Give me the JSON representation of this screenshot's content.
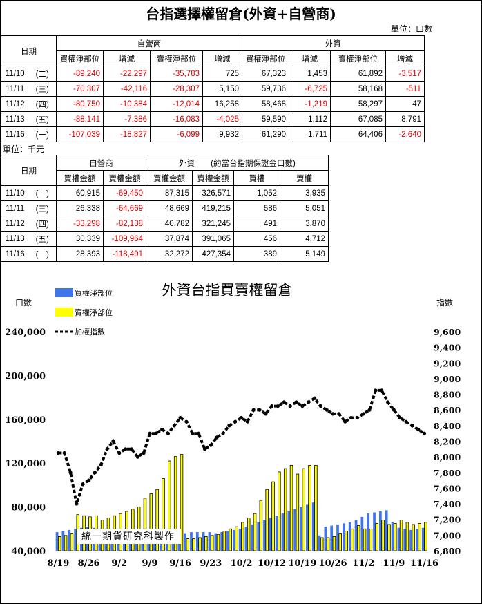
{
  "main_title": "台指選擇權留倉(外資+自營商)",
  "unit_contracts": "單位：口數",
  "unit_money": "單位：千元",
  "table1": {
    "date_header": "日期",
    "group1": "自營商",
    "group2": "外資",
    "columns": [
      "買權淨部位",
      "增減",
      "賣權淨部位",
      "增減",
      "買權淨部位",
      "增減",
      "賣權淨部位",
      "增減"
    ],
    "rows": [
      {
        "date": "11/10",
        "weekday": "(二)",
        "cells": [
          "-89,240",
          "-22,297",
          "-35,783",
          "725",
          "67,323",
          "1,453",
          "61,892",
          "-3,517"
        ]
      },
      {
        "date": "11/11",
        "weekday": "(三)",
        "cells": [
          "-70,307",
          "-42,116",
          "-28,307",
          "5,150",
          "59,736",
          "-6,725",
          "58,168",
          "-511"
        ]
      },
      {
        "date": "11/12",
        "weekday": "(四)",
        "cells": [
          "-80,750",
          "-10,384",
          "-12,014",
          "16,258",
          "58,468",
          "-1,219",
          "58,297",
          "47"
        ]
      },
      {
        "date": "11/13",
        "weekday": "(五)",
        "cells": [
          "-88,141",
          "-7,386",
          "-16,083",
          "-4,025",
          "59,590",
          "1,112",
          "67,085",
          "8,791"
        ]
      },
      {
        "date": "11/16",
        "weekday": "(一)",
        "cells": [
          "-107,039",
          "-18,827",
          "-6,099",
          "9,932",
          "61,290",
          "1,711",
          "64,406",
          "-2,640"
        ]
      }
    ]
  },
  "table2": {
    "date_header": "日期",
    "group1": "自營商",
    "group2": "外資　　(約當台指期保證金口數)",
    "columns": [
      "買權金額",
      "賣權金額",
      "買權金額",
      "賣權金額",
      "買權",
      "賣權"
    ],
    "rows": [
      {
        "date": "11/10",
        "weekday": "(二)",
        "cells": [
          "60,915",
          "-69,450",
          "87,315",
          "326,571",
          "1,052",
          "3,935"
        ]
      },
      {
        "date": "11/11",
        "weekday": "(三)",
        "cells": [
          "26,338",
          "-64,669",
          "48,669",
          "419,215",
          "586",
          "5,051"
        ]
      },
      {
        "date": "11/12",
        "weekday": "(四)",
        "cells": [
          "-33,298",
          "-82,138",
          "40,782",
          "321,245",
          "491",
          "3,870"
        ]
      },
      {
        "date": "11/13",
        "weekday": "(五)",
        "cells": [
          "30,339",
          "-109,964",
          "37,874",
          "391,065",
          "456",
          "4,712"
        ]
      },
      {
        "date": "11/16",
        "weekday": "(一)",
        "cells": [
          "28,393",
          "-118,491",
          "32,272",
          "427,354",
          "389",
          "5,149"
        ]
      }
    ]
  },
  "colors": {
    "call_bar": "#3f74ea",
    "put_bar": "#ffff00",
    "put_outline": "#000000",
    "index_line": "#000000",
    "negative_text": "#e00000"
  },
  "chart_data": {
    "type": "bar",
    "title": "外資台指買賣權留倉",
    "left_axis_label": "口數",
    "right_axis_label": "指數",
    "watermark": "統一期貨研究科製作",
    "legend_position": "top-left",
    "y_left_ticks": [
      "40,000",
      "80,000",
      "120,000",
      "160,000",
      "200,000",
      "240,000"
    ],
    "y_left_range": [
      40000,
      240000
    ],
    "y_right_ticks": [
      "6,800",
      "7,000",
      "7,200",
      "7,400",
      "7,600",
      "7,800",
      "8,000",
      "8,200",
      "8,400",
      "8,600",
      "8,800",
      "9,000",
      "9,200",
      "9,400",
      "9,600"
    ],
    "y_right_range": [
      6800,
      9600
    ],
    "x_ticks": [
      "8/19",
      "8/26",
      "9/2",
      "9/9",
      "9/16",
      "9/23",
      "10/2",
      "10/12",
      "10/19",
      "10/26",
      "11/2",
      "11/9",
      "11/16"
    ],
    "tick_index": [
      0,
      5,
      10,
      15,
      20,
      25,
      30,
      35,
      40,
      45,
      50,
      55,
      60
    ],
    "series": [
      {
        "name": "買權淨部位",
        "kind": "bar",
        "values": [
          57000,
          58000,
          59000,
          60000,
          61000,
          62000,
          61000,
          60000,
          59000,
          58000,
          57000,
          56000,
          55000,
          54000,
          53000,
          52000,
          51000,
          50000,
          49000,
          48000,
          56000,
          56000,
          57000,
          57000,
          57000,
          57000,
          56000,
          57000,
          58000,
          59000,
          60000,
          62000,
          64000,
          66000,
          68000,
          70000,
          72000,
          74000,
          76000,
          78000,
          80000,
          82000,
          84000,
          54000,
          62000,
          63000,
          64000,
          65000,
          66000,
          68000,
          71000,
          74000,
          75000,
          76000,
          77000,
          66000,
          61000,
          60000,
          59000,
          60000,
          61000
        ]
      },
      {
        "name": "賣權淨部位",
        "kind": "bar",
        "values": [
          53000,
          54000,
          56000,
          73000,
          72000,
          71000,
          72000,
          68000,
          70000,
          72000,
          74000,
          76000,
          78000,
          80000,
          88000,
          92000,
          96000,
          106000,
          122000,
          126000,
          128000,
          51000,
          51000,
          52000,
          53000,
          54000,
          55000,
          58000,
          60000,
          62000,
          66000,
          70000,
          74000,
          86000,
          96000,
          103000,
          112000,
          115000,
          118000,
          110000,
          115000,
          118000,
          118000,
          52000,
          52000,
          53000,
          56000,
          58000,
          60000,
          63000,
          60000,
          60000,
          65000,
          68000,
          64000,
          65000,
          68000,
          66000,
          64000,
          65000,
          66000
        ]
      },
      {
        "name": "加權指數",
        "kind": "line",
        "axis": "right",
        "values": [
          8050,
          8050,
          7800,
          7400,
          7650,
          7700,
          7800,
          7900,
          8100,
          8200,
          8050,
          8100,
          8100,
          8000,
          8050,
          8300,
          8300,
          8350,
          8300,
          8400,
          8500,
          8450,
          8300,
          8300,
          8100,
          8150,
          8250,
          8300,
          8400,
          8450,
          8500,
          8450,
          8600,
          8600,
          8550,
          8650,
          8650,
          8700,
          8650,
          8700,
          8650,
          8700,
          8750,
          8650,
          8600,
          8550,
          8550,
          8450,
          8500,
          8500,
          8550,
          8600,
          8850,
          8850,
          8700,
          8600,
          8500,
          8450,
          8400,
          8350,
          8300
        ]
      }
    ]
  }
}
